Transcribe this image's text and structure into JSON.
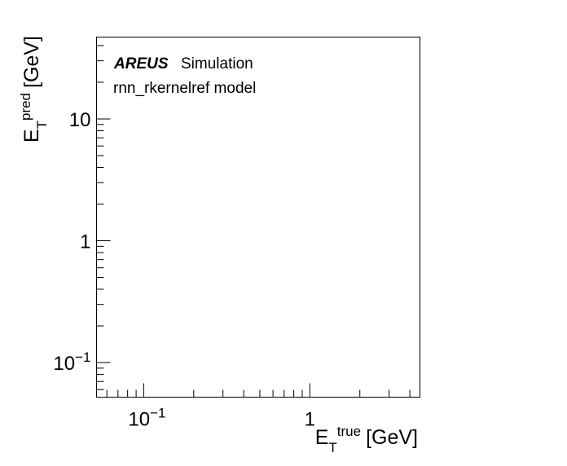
{
  "chart_data": {
    "type": "scatter",
    "title": "",
    "x_scale": "log",
    "y_scale": "log",
    "xlim": [
      0.052,
      4.6
    ],
    "ylim": [
      0.052,
      47
    ],
    "grid": false,
    "xlabel": {
      "main": "E",
      "sub": "T",
      "sup": "true",
      "unit": "[GeV]"
    },
    "ylabel": {
      "main": "E",
      "sub": "T",
      "sup": "pred",
      "unit": "[GeV]"
    },
    "x_ticks": [
      {
        "value": 0.1,
        "base": "10",
        "exp": "−1"
      },
      {
        "value": 1,
        "base": "1",
        "exp": ""
      }
    ],
    "y_ticks": [
      {
        "value": 0.1,
        "base": "10",
        "exp": "−1"
      },
      {
        "value": 1,
        "base": "1",
        "exp": ""
      },
      {
        "value": 10,
        "base": "10",
        "exp": ""
      }
    ],
    "series": [],
    "annotations": {
      "experiment": "AREUS",
      "status": "Simulation",
      "model": "rnn_rkernelref model"
    }
  }
}
